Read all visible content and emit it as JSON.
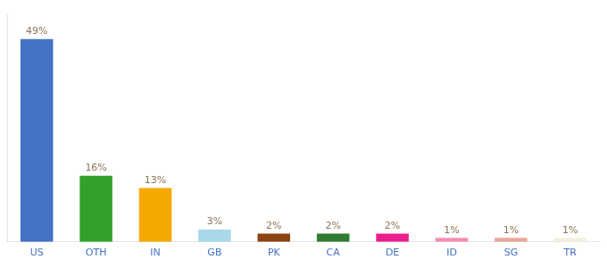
{
  "chart_data": {
    "type": "bar",
    "categories": [
      "US",
      "OTH",
      "IN",
      "GB",
      "PK",
      "CA",
      "DE",
      "ID",
      "SG",
      "TR"
    ],
    "values": [
      49,
      16,
      13,
      3,
      2,
      2,
      2,
      1,
      1,
      1
    ],
    "value_labels": [
      "49%",
      "16%",
      "13%",
      "3%",
      "2%",
      "2%",
      "2%",
      "1%",
      "1%",
      "1%"
    ],
    "colors": [
      "#4472c4",
      "#33a02c",
      "#f5a800",
      "#a8d8ea",
      "#8b4513",
      "#2e7d32",
      "#e91e8c",
      "#f48fb1",
      "#e8a898",
      "#f5f0dc"
    ],
    "ylim": [
      0,
      55
    ],
    "grid": false,
    "data_labels": true,
    "tick_labels": "x"
  }
}
